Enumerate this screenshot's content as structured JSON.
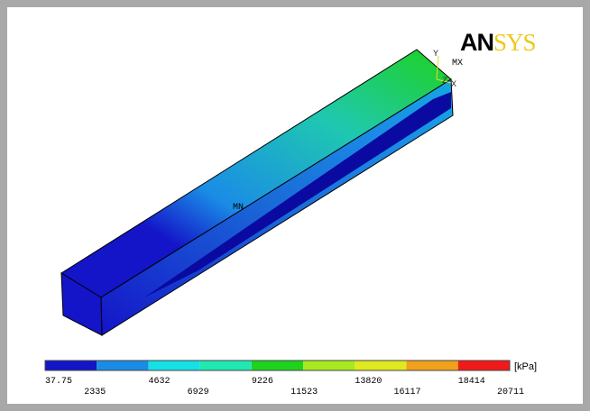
{
  "logo": {
    "part1": "AN",
    "part2": "SYS"
  },
  "markers": {
    "min": "MN",
    "max": "MX",
    "axis_y": "Y",
    "axis_z": "Z",
    "axis_x": "X"
  },
  "legend": {
    "unit": "[kPa]",
    "labels": [
      "37.75",
      "2335",
      "4632",
      "6929",
      "9226",
      "11523",
      "13820",
      "16117",
      "18414",
      "20711"
    ],
    "colors": [
      "#1414c8",
      "#1a8ce6",
      "#14e0e6",
      "#1fe8b0",
      "#1ed21e",
      "#a8e81f",
      "#e0e81f",
      "#f0a01a",
      "#f01a1a"
    ]
  }
}
